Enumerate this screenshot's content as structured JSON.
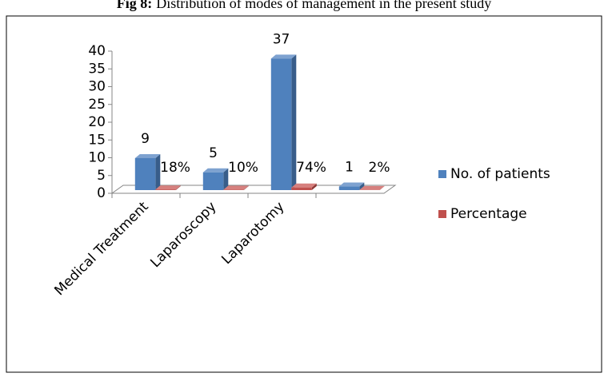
{
  "chart_data": {
    "type": "bar3d",
    "figure_label": "Fig 8:",
    "title": "Distribution of modes of management in the present study",
    "categories": [
      "Medical Treatment",
      "Laparoscopy",
      "Laparotomy",
      null
    ],
    "series": [
      {
        "name": "No. of patients",
        "color": "#4f81bd",
        "values": [
          9,
          5,
          37,
          1
        ]
      },
      {
        "name": "Percentage",
        "color": "#c0504d",
        "values": [
          0.18,
          0.1,
          0.74,
          0.02
        ],
        "value_labels": [
          "18%",
          "10%",
          "74%",
          "2%"
        ]
      }
    ],
    "ylim": [
      0,
      40
    ],
    "yticks": [
      0,
      5,
      10,
      15,
      20,
      25,
      30,
      35,
      40
    ],
    "legend": "right"
  }
}
